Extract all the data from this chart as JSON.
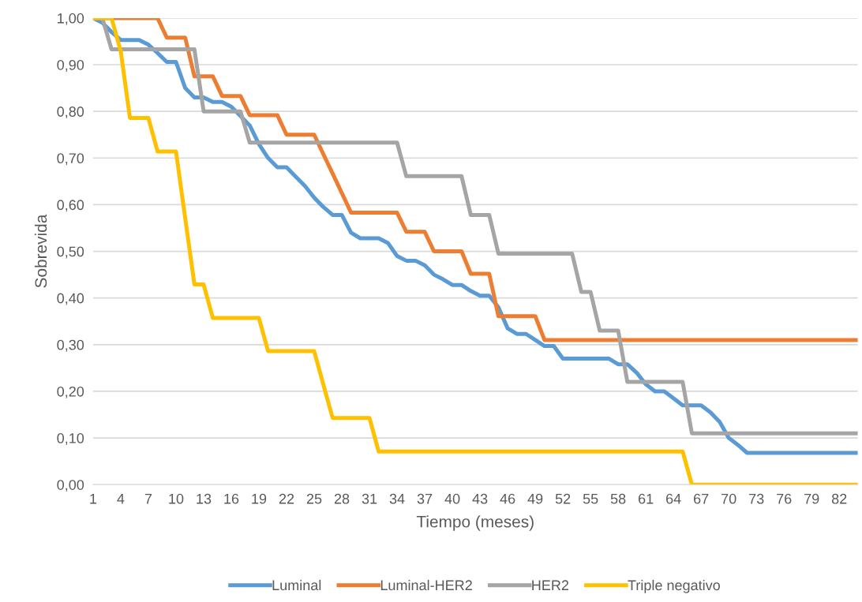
{
  "chart_data": {
    "type": "line",
    "xlabel": "Tiempo (meses)",
    "ylabel": "Sobrevida",
    "categories": [
      "1",
      null,
      null,
      "4",
      null,
      null,
      "7",
      null,
      null,
      "10",
      null,
      null,
      "13",
      null,
      null,
      "16",
      null,
      null,
      "19",
      null,
      null,
      "22",
      null,
      null,
      "25",
      null,
      null,
      "28",
      null,
      null,
      "31",
      null,
      null,
      "34",
      null,
      null,
      "37",
      null,
      null,
      "40",
      null,
      null,
      "43",
      null,
      null,
      "46",
      null,
      null,
      "49",
      null,
      null,
      "52",
      null,
      null,
      "55",
      null,
      null,
      "58",
      null,
      null,
      "61",
      null,
      null,
      "64",
      null,
      null,
      "67",
      null,
      null,
      "70",
      null,
      null,
      "73",
      null,
      null,
      "76",
      null,
      null,
      "79",
      null,
      null,
      "82",
      null,
      null
    ],
    "series": [
      {
        "name": "Luminal",
        "color": "#5b9bd5",
        "values": [
          1.0,
          0.99,
          0.97,
          0.953,
          0.953,
          0.953,
          0.943,
          0.925,
          0.906,
          0.906,
          0.85,
          0.83,
          0.83,
          0.82,
          0.82,
          0.81,
          0.79,
          0.77,
          0.73,
          0.7,
          0.68,
          0.68,
          0.66,
          0.64,
          0.615,
          0.595,
          0.578,
          0.578,
          0.54,
          0.528,
          0.528,
          0.528,
          0.518,
          0.49,
          0.48,
          0.48,
          0.47,
          0.45,
          0.44,
          0.428,
          0.428,
          0.415,
          0.405,
          0.405,
          0.38,
          0.335,
          0.323,
          0.323,
          0.31,
          0.297,
          0.297,
          0.27,
          0.27,
          0.27,
          0.27,
          0.27,
          0.27,
          0.258,
          0.258,
          0.24,
          0.215,
          0.2,
          0.2,
          0.185,
          0.17,
          0.17,
          0.17,
          0.155,
          0.135,
          0.1,
          0.085,
          0.068,
          0.068,
          0.068,
          0.068,
          0.068,
          0.068,
          0.068,
          0.068,
          0.068,
          0.068,
          0.068,
          0.068,
          0.068
        ]
      },
      {
        "name": "Luminal-HER2",
        "color": "#ed7d31",
        "values": [
          1.0,
          1.0,
          1.0,
          1.0,
          1.0,
          1.0,
          1.0,
          1.0,
          0.958,
          0.958,
          0.958,
          0.875,
          0.875,
          0.875,
          0.833,
          0.833,
          0.833,
          0.792,
          0.792,
          0.792,
          0.792,
          0.75,
          0.75,
          0.75,
          0.75,
          0.708,
          0.667,
          0.625,
          0.583,
          0.583,
          0.583,
          0.583,
          0.583,
          0.583,
          0.542,
          0.542,
          0.542,
          0.5,
          0.5,
          0.5,
          0.5,
          0.452,
          0.452,
          0.452,
          0.361,
          0.361,
          0.361,
          0.361,
          0.361,
          0.31,
          0.31,
          0.31,
          0.31,
          0.31,
          0.31,
          0.31,
          0.31,
          0.31,
          0.31,
          0.31,
          0.31,
          0.31,
          0.31,
          0.31,
          0.31,
          0.31,
          0.31,
          0.31,
          0.31,
          0.31,
          0.31,
          0.31,
          0.31,
          0.31,
          0.31,
          0.31,
          0.31,
          0.31,
          0.31,
          0.31,
          0.31,
          0.31,
          0.31,
          0.31
        ]
      },
      {
        "name": "HER2",
        "color": "#a5a5a5",
        "values": [
          1.0,
          1.0,
          0.933,
          0.933,
          0.933,
          0.933,
          0.933,
          0.933,
          0.933,
          0.933,
          0.933,
          0.933,
          0.8,
          0.8,
          0.8,
          0.8,
          0.8,
          0.733,
          0.733,
          0.733,
          0.733,
          0.733,
          0.733,
          0.733,
          0.733,
          0.733,
          0.733,
          0.733,
          0.733,
          0.733,
          0.733,
          0.733,
          0.733,
          0.733,
          0.661,
          0.661,
          0.661,
          0.661,
          0.661,
          0.661,
          0.661,
          0.578,
          0.578,
          0.578,
          0.495,
          0.495,
          0.495,
          0.495,
          0.495,
          0.495,
          0.495,
          0.495,
          0.495,
          0.413,
          0.413,
          0.33,
          0.33,
          0.33,
          0.22,
          0.22,
          0.22,
          0.22,
          0.22,
          0.22,
          0.22,
          0.11,
          0.11,
          0.11,
          0.11,
          0.11,
          0.11,
          0.11,
          0.11,
          0.11,
          0.11,
          0.11,
          0.11,
          0.11,
          0.11,
          0.11,
          0.11,
          0.11,
          0.11,
          0.11
        ]
      },
      {
        "name": "Triple negativo",
        "color": "#ffc000",
        "values": [
          1.0,
          1.0,
          1.0,
          0.929,
          0.786,
          0.786,
          0.786,
          0.714,
          0.714,
          0.714,
          0.571,
          0.429,
          0.429,
          0.357,
          0.357,
          0.357,
          0.357,
          0.357,
          0.357,
          0.286,
          0.286,
          0.286,
          0.286,
          0.286,
          0.286,
          0.214,
          0.143,
          0.143,
          0.143,
          0.143,
          0.143,
          0.071,
          0.071,
          0.071,
          0.071,
          0.071,
          0.071,
          0.071,
          0.071,
          0.071,
          0.071,
          0.071,
          0.071,
          0.071,
          0.071,
          0.071,
          0.071,
          0.071,
          0.071,
          0.071,
          0.071,
          0.071,
          0.071,
          0.071,
          0.071,
          0.071,
          0.071,
          0.071,
          0.071,
          0.071,
          0.071,
          0.071,
          0.071,
          0.071,
          0.071,
          0,
          0,
          0,
          0,
          0,
          0,
          0,
          0,
          0,
          0,
          0,
          0,
          0,
          0,
          0,
          0,
          0,
          0,
          0
        ]
      }
    ],
    "ylim": [
      0,
      1
    ],
    "yticks": [
      {
        "value": 0,
        "label": "0,00"
      },
      {
        "value": 0.1,
        "label": "0,10"
      },
      {
        "value": 0.2,
        "label": "0,20"
      },
      {
        "value": 0.3,
        "label": "0,30"
      },
      {
        "value": 0.4,
        "label": "0,40"
      },
      {
        "value": 0.5,
        "label": "0,50"
      },
      {
        "value": 0.6,
        "label": "0,60"
      },
      {
        "value": 0.7,
        "label": "0,70"
      },
      {
        "value": 0.8,
        "label": "0,80"
      },
      {
        "value": 0.9,
        "label": "0,90"
      },
      {
        "value": 1.0,
        "label": "1,00"
      }
    ],
    "grid": "y",
    "legend": "bottom",
    "marker": "none",
    "line_style": "solid"
  }
}
